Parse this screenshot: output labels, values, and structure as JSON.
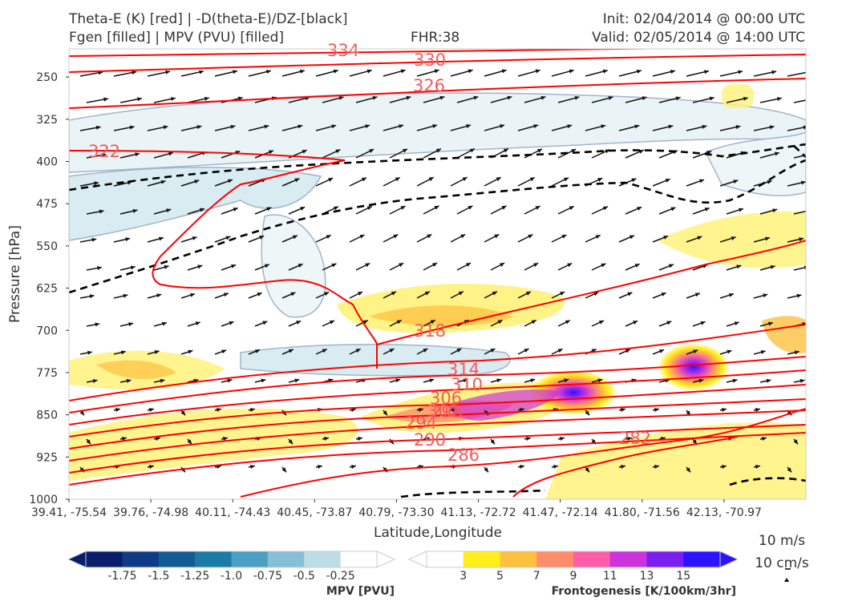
{
  "header": {
    "title_line1": "Theta-E (K) [red] | -D(theta-E)/DZ-[black]",
    "title_line2": "Fgen [filled] | MPV (PVU) [filled]",
    "fhr": "FHR:38",
    "init": "Init: 02/04/2014 @ 00:00 UTC",
    "valid": "Valid: 02/05/2014 @ 14:00 UTC"
  },
  "chart_data": {
    "type": "cross-section",
    "xlabel": "Latitude,Longitude",
    "ylabel": "Pressure [hPa]",
    "ylim": [
      1000,
      200
    ],
    "y_ticks": [
      "250",
      "325",
      "400",
      "475",
      "550",
      "625",
      "700",
      "775",
      "850",
      "925",
      "1000"
    ],
    "x_ticks": [
      "39.41, -75.54",
      "39.76, -74.98",
      "40.11, -74.43",
      "40.45, -73.87",
      "40.79, -73.30",
      "41.13, -72.72",
      "41.47, -72.14",
      "41.80, -71.56",
      "42.13, -70.97"
    ],
    "theta_e_labels": [
      "334",
      "330",
      "326",
      "322",
      "318",
      "314",
      "310",
      "306",
      "302",
      "298",
      "294",
      "290",
      "286",
      "282"
    ],
    "theta_e_color": "#ff0000",
    "label_color": "#f25a5a",
    "lapse_color": "#000000",
    "vector_scale": {
      "h": "10 m/s",
      "v": "10 cm/s"
    },
    "colorbars": {
      "mpv": {
        "label": "MPV [PVU]",
        "ticks": [
          "-1.75",
          "-1.5",
          "-1.25",
          "-1.0",
          "-0.75",
          "-0.5",
          "-0.25"
        ],
        "colors": [
          "#0a1d6b",
          "#0f3a85",
          "#125c96",
          "#1a7ca6",
          "#4aa0c2",
          "#86c0d6",
          "#bcdde6",
          "#ffffff"
        ]
      },
      "fgen": {
        "label": "Frontogenesis [K/100km/3hr]",
        "ticks": [
          "3",
          "5",
          "7",
          "9",
          "11",
          "13",
          "15"
        ],
        "colors": [
          "#ffffff",
          "#ffee1a",
          "#ffc040",
          "#ff8c6a",
          "#ff5ca8",
          "#cc33dd",
          "#7a1ef0",
          "#2a14ff"
        ]
      }
    }
  }
}
